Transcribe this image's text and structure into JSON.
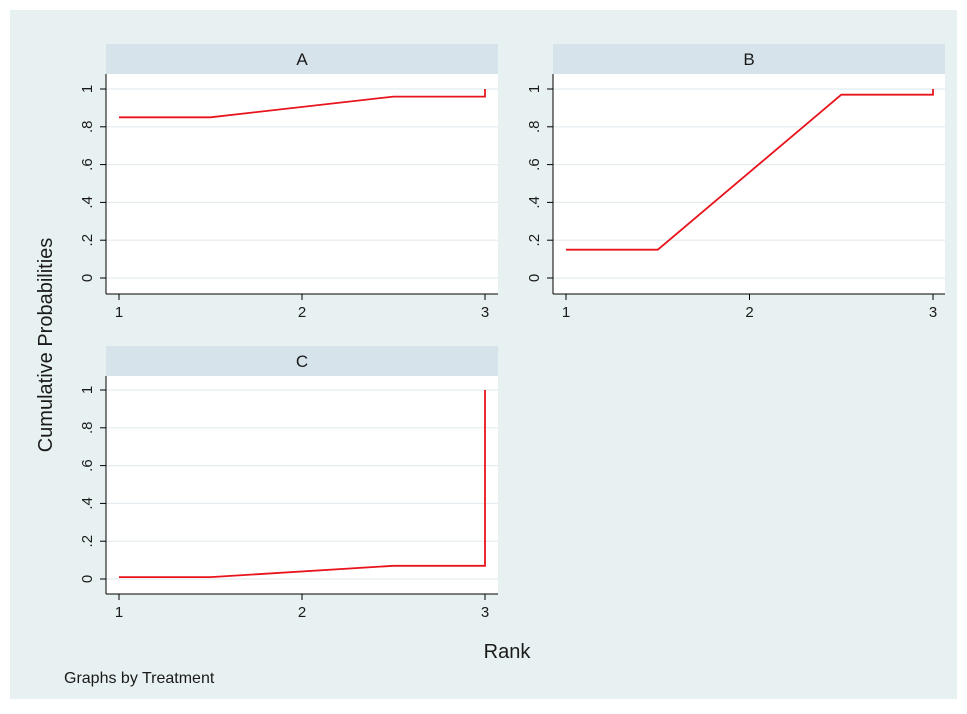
{
  "figure": {
    "ylabel": "Cumulative Probabilities",
    "xlabel": "Rank",
    "note": "Graphs by Treatment",
    "colors": {
      "background": "#e8f1f2",
      "plot_bg": "#ffffff",
      "header_bg": "#d6e3ea",
      "line": "#e8141c",
      "grid": "#e4ecef",
      "text": "#1a1a1a"
    }
  },
  "chart_data": [
    {
      "type": "line",
      "title": "A",
      "xlim": [
        1,
        3
      ],
      "ylim": [
        0,
        1
      ],
      "xticks": [
        1,
        2,
        3
      ],
      "yticks": [
        0,
        0.2,
        0.4,
        0.6,
        0.8,
        1
      ],
      "ytick_labels": [
        "0",
        ".2",
        ".4",
        ".6",
        ".8",
        "1"
      ],
      "xtick_labels": [
        "1",
        "2",
        "3"
      ],
      "grid": true,
      "series": [
        {
          "x": [
            1,
            1.5,
            2.5,
            3,
            3
          ],
          "y": [
            0.85,
            0.85,
            0.96,
            0.96,
            1.0
          ]
        }
      ]
    },
    {
      "type": "line",
      "title": "B",
      "xlim": [
        1,
        3
      ],
      "ylim": [
        0,
        1
      ],
      "xticks": [
        1,
        2,
        3
      ],
      "yticks": [
        0,
        0.2,
        0.4,
        0.6,
        0.8,
        1
      ],
      "ytick_labels": [
        "0",
        ".2",
        ".4",
        ".6",
        ".8",
        "1"
      ],
      "xtick_labels": [
        "1",
        "2",
        "3"
      ],
      "grid": true,
      "series": [
        {
          "x": [
            1,
            1.5,
            2.5,
            3,
            3
          ],
          "y": [
            0.15,
            0.15,
            0.97,
            0.97,
            1.0
          ]
        }
      ]
    },
    {
      "type": "line",
      "title": "C",
      "xlim": [
        1,
        3
      ],
      "ylim": [
        0,
        1
      ],
      "xticks": [
        1,
        2,
        3
      ],
      "yticks": [
        0,
        0.2,
        0.4,
        0.6,
        0.8,
        1
      ],
      "ytick_labels": [
        "0",
        ".2",
        ".4",
        ".6",
        ".8",
        "1"
      ],
      "xtick_labels": [
        "1",
        "2",
        "3"
      ],
      "grid": true,
      "series": [
        {
          "x": [
            1,
            1.5,
            2.5,
            3,
            3
          ],
          "y": [
            0.01,
            0.01,
            0.07,
            0.07,
            1.0
          ]
        }
      ]
    }
  ]
}
